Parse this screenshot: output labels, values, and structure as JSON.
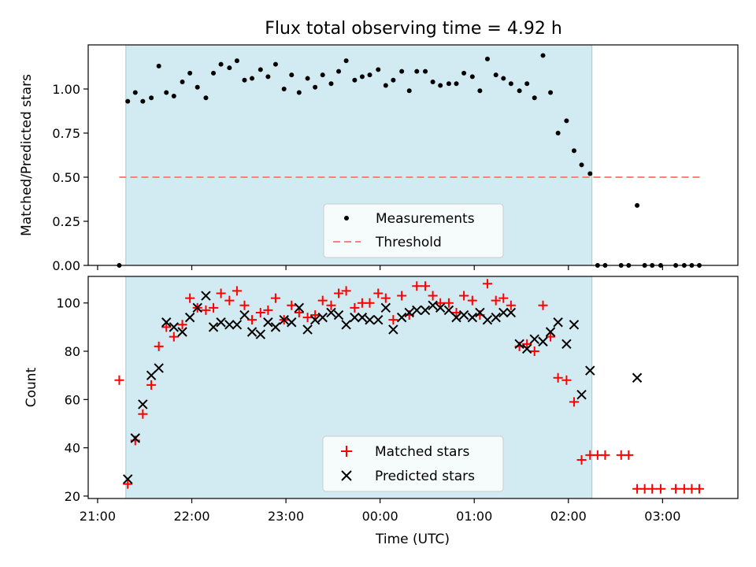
{
  "chart_data": [
    {
      "type": "scatter",
      "title": "Flux total observing time = 4.92 h",
      "ylabel": "Matched/Predicted stars",
      "xlabel": "",
      "x_unit": "hours since 21:00 UTC",
      "xlim": [
        -0.1,
        6.8
      ],
      "ylim": [
        0.0,
        1.25
      ],
      "yticks": [
        "0.00",
        "0.25",
        "0.50",
        "0.75",
        "1.00"
      ],
      "grid": false,
      "legend_placement": "lower-center",
      "observing_window": [
        0.3,
        5.25
      ],
      "window_color": "#add8e6",
      "threshold": {
        "name": "Threshold",
        "value": 0.5,
        "x_range": [
          0.23,
          6.4
        ],
        "color": "#ff7f7f"
      },
      "series": [
        {
          "name": "Measurements",
          "color": "#000000",
          "points": [
            [
              0.23,
              0.0
            ],
            [
              0.32,
              0.93
            ],
            [
              0.4,
              0.98
            ],
            [
              0.48,
              0.93
            ],
            [
              0.57,
              0.95
            ],
            [
              0.65,
              1.13
            ],
            [
              0.73,
              0.98
            ],
            [
              0.81,
              0.96
            ],
            [
              0.9,
              1.04
            ],
            [
              0.98,
              1.09
            ],
            [
              1.06,
              1.01
            ],
            [
              1.15,
              0.95
            ],
            [
              1.23,
              1.09
            ],
            [
              1.31,
              1.14
            ],
            [
              1.4,
              1.12
            ],
            [
              1.48,
              1.16
            ],
            [
              1.56,
              1.05
            ],
            [
              1.64,
              1.06
            ],
            [
              1.73,
              1.11
            ],
            [
              1.81,
              1.07
            ],
            [
              1.89,
              1.14
            ],
            [
              1.98,
              1.0
            ],
            [
              2.06,
              1.08
            ],
            [
              2.14,
              0.98
            ],
            [
              2.23,
              1.06
            ],
            [
              2.31,
              1.01
            ],
            [
              2.39,
              1.08
            ],
            [
              2.48,
              1.03
            ],
            [
              2.56,
              1.1
            ],
            [
              2.64,
              1.16
            ],
            [
              2.73,
              1.05
            ],
            [
              2.81,
              1.07
            ],
            [
              2.89,
              1.08
            ],
            [
              2.98,
              1.11
            ],
            [
              3.06,
              1.02
            ],
            [
              3.14,
              1.05
            ],
            [
              3.23,
              1.1
            ],
            [
              3.31,
              0.99
            ],
            [
              3.39,
              1.1
            ],
            [
              3.48,
              1.1
            ],
            [
              3.56,
              1.04
            ],
            [
              3.64,
              1.02
            ],
            [
              3.73,
              1.03
            ],
            [
              3.81,
              1.03
            ],
            [
              3.89,
              1.09
            ],
            [
              3.98,
              1.07
            ],
            [
              4.06,
              0.99
            ],
            [
              4.14,
              1.17
            ],
            [
              4.23,
              1.08
            ],
            [
              4.31,
              1.06
            ],
            [
              4.39,
              1.03
            ],
            [
              4.48,
              0.99
            ],
            [
              4.56,
              1.03
            ],
            [
              4.64,
              0.95
            ],
            [
              4.73,
              1.19
            ],
            [
              4.81,
              0.98
            ],
            [
              4.89,
              0.75
            ],
            [
              4.98,
              0.82
            ],
            [
              5.06,
              0.65
            ],
            [
              5.14,
              0.57
            ],
            [
              5.23,
              0.52
            ],
            [
              5.31,
              0.0
            ],
            [
              5.39,
              0.0
            ],
            [
              5.56,
              0.0
            ],
            [
              5.64,
              0.0
            ],
            [
              5.73,
              0.34
            ],
            [
              5.81,
              0.0
            ],
            [
              5.89,
              0.0
            ],
            [
              5.98,
              0.0
            ],
            [
              6.14,
              0.0
            ],
            [
              6.23,
              0.0
            ],
            [
              6.31,
              0.0
            ],
            [
              6.39,
              0.0
            ]
          ]
        }
      ]
    },
    {
      "type": "scatter",
      "title": "",
      "ylabel": "Count",
      "xlabel": "Time (UTC)",
      "x_unit": "hours since 21:00 UTC",
      "xlim": [
        -0.1,
        6.8
      ],
      "ylim": [
        19,
        111
      ],
      "yticks": [
        "20",
        "40",
        "60",
        "80",
        "100"
      ],
      "xticks": [
        {
          "value": 0,
          "label": "21:00"
        },
        {
          "value": 1,
          "label": "22:00"
        },
        {
          "value": 2,
          "label": "23:00"
        },
        {
          "value": 3,
          "label": "00:00"
        },
        {
          "value": 4,
          "label": "01:00"
        },
        {
          "value": 5,
          "label": "02:00"
        },
        {
          "value": 6,
          "label": "03:00"
        }
      ],
      "grid": false,
      "legend_placement": "lower-center",
      "observing_window": [
        0.3,
        5.25
      ],
      "window_color": "#add8e6",
      "series": [
        {
          "name": "Matched stars",
          "marker": "plus",
          "color": "#ff0000",
          "points": [
            [
              0.23,
              68
            ],
            [
              0.32,
              25
            ],
            [
              0.4,
              43
            ],
            [
              0.48,
              54
            ],
            [
              0.57,
              66
            ],
            [
              0.65,
              82
            ],
            [
              0.73,
              90
            ],
            [
              0.81,
              86
            ],
            [
              0.9,
              91
            ],
            [
              0.98,
              102
            ],
            [
              1.06,
              98
            ],
            [
              1.15,
              97
            ],
            [
              1.23,
              98
            ],
            [
              1.31,
              104
            ],
            [
              1.4,
              101
            ],
            [
              1.48,
              105
            ],
            [
              1.56,
              99
            ],
            [
              1.64,
              93
            ],
            [
              1.73,
              96
            ],
            [
              1.81,
              97
            ],
            [
              1.89,
              102
            ],
            [
              1.98,
              93
            ],
            [
              2.06,
              99
            ],
            [
              2.14,
              96
            ],
            [
              2.23,
              94
            ],
            [
              2.31,
              95
            ],
            [
              2.39,
              101
            ],
            [
              2.48,
              99
            ],
            [
              2.56,
              104
            ],
            [
              2.64,
              105
            ],
            [
              2.73,
              98
            ],
            [
              2.81,
              100
            ],
            [
              2.89,
              100
            ],
            [
              2.98,
              104
            ],
            [
              3.06,
              102
            ],
            [
              3.14,
              93
            ],
            [
              3.23,
              103
            ],
            [
              3.31,
              95
            ],
            [
              3.39,
              107
            ],
            [
              3.48,
              107
            ],
            [
              3.56,
              103
            ],
            [
              3.64,
              100
            ],
            [
              3.73,
              100
            ],
            [
              3.81,
              96
            ],
            [
              3.89,
              103
            ],
            [
              3.98,
              101
            ],
            [
              4.06,
              95
            ],
            [
              4.14,
              108
            ],
            [
              4.23,
              101
            ],
            [
              4.31,
              102
            ],
            [
              4.39,
              99
            ],
            [
              4.48,
              82
            ],
            [
              4.56,
              83
            ],
            [
              4.64,
              80
            ],
            [
              4.73,
              99
            ],
            [
              4.81,
              86
            ],
            [
              4.89,
              69
            ],
            [
              4.98,
              68
            ],
            [
              5.06,
              59
            ],
            [
              5.14,
              35
            ],
            [
              5.23,
              37
            ],
            [
              5.31,
              37
            ],
            [
              5.39,
              37
            ],
            [
              5.56,
              37
            ],
            [
              5.64,
              37
            ],
            [
              5.73,
              23
            ],
            [
              5.81,
              23
            ],
            [
              5.89,
              23
            ],
            [
              5.98,
              23
            ],
            [
              6.14,
              23
            ],
            [
              6.23,
              23
            ],
            [
              6.31,
              23
            ],
            [
              6.39,
              23
            ]
          ]
        },
        {
          "name": "Predicted stars",
          "marker": "x",
          "color": "#000000",
          "points": [
            [
              0.32,
              27
            ],
            [
              0.4,
              44
            ],
            [
              0.48,
              58
            ],
            [
              0.57,
              70
            ],
            [
              0.65,
              73
            ],
            [
              0.73,
              92
            ],
            [
              0.81,
              90
            ],
            [
              0.9,
              88
            ],
            [
              0.98,
              94
            ],
            [
              1.06,
              98
            ],
            [
              1.15,
              103
            ],
            [
              1.23,
              90
            ],
            [
              1.31,
              92
            ],
            [
              1.4,
              91
            ],
            [
              1.48,
              91
            ],
            [
              1.56,
              95
            ],
            [
              1.64,
              88
            ],
            [
              1.73,
              87
            ],
            [
              1.81,
              92
            ],
            [
              1.89,
              90
            ],
            [
              1.98,
              93
            ],
            [
              2.06,
              92
            ],
            [
              2.14,
              98
            ],
            [
              2.23,
              89
            ],
            [
              2.31,
              93
            ],
            [
              2.39,
              94
            ],
            [
              2.48,
              96
            ],
            [
              2.56,
              95
            ],
            [
              2.64,
              91
            ],
            [
              2.73,
              94
            ],
            [
              2.81,
              94
            ],
            [
              2.89,
              93
            ],
            [
              2.98,
              93
            ],
            [
              3.06,
              98
            ],
            [
              3.14,
              89
            ],
            [
              3.23,
              94
            ],
            [
              3.31,
              96
            ],
            [
              3.39,
              97
            ],
            [
              3.48,
              97
            ],
            [
              3.56,
              99
            ],
            [
              3.64,
              98
            ],
            [
              3.73,
              97
            ],
            [
              3.81,
              94
            ],
            [
              3.89,
              95
            ],
            [
              3.98,
              94
            ],
            [
              4.06,
              96
            ],
            [
              4.14,
              93
            ],
            [
              4.23,
              94
            ],
            [
              4.31,
              96
            ],
            [
              4.39,
              96
            ],
            [
              4.48,
              83
            ],
            [
              4.56,
              81
            ],
            [
              4.64,
              85
            ],
            [
              4.73,
              84
            ],
            [
              4.81,
              88
            ],
            [
              4.89,
              92
            ],
            [
              4.98,
              83
            ],
            [
              5.06,
              91
            ],
            [
              5.14,
              62
            ],
            [
              5.23,
              72
            ],
            [
              5.73,
              69
            ]
          ]
        }
      ]
    }
  ]
}
